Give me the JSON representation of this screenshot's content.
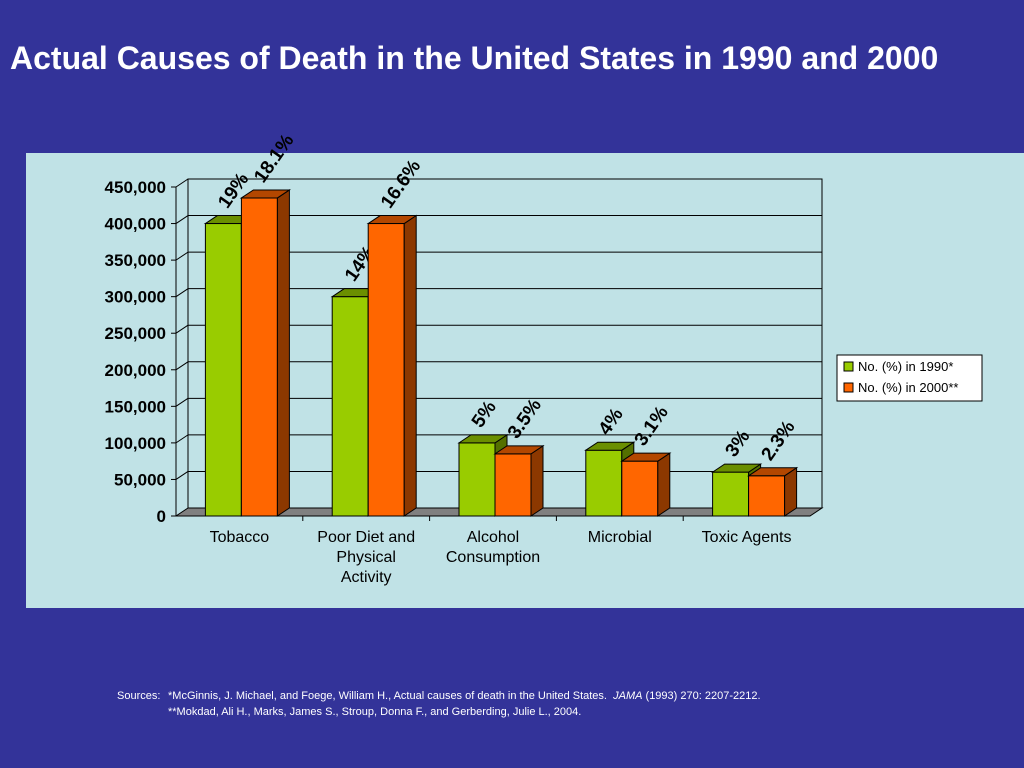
{
  "title": "Actual Causes of Death in the United States in 1990 and 2000",
  "chart_data": {
    "type": "bar",
    "categories": [
      "Tobacco",
      "Poor Diet and Physical Activity",
      "Alcohol Consumption",
      "Microbial",
      "Toxic Agents"
    ],
    "series": [
      {
        "name": "No. (%) in 1990*",
        "values": [
          400000,
          300000,
          100000,
          90000,
          60000
        ],
        "labels": [
          "19%",
          "14%",
          "5%",
          "4%",
          "3%"
        ],
        "color": "#99cc00"
      },
      {
        "name": "No. (%) in 2000**",
        "values": [
          435000,
          400000,
          85000,
          75000,
          55000
        ],
        "labels": [
          "18.1%",
          "16.6%",
          "3.5%",
          "3.1%",
          "2.3%"
        ],
        "color": "#ff6600"
      }
    ],
    "ylim": [
      0,
      450000
    ],
    "yticks": [
      "0",
      "50,000",
      "100,000",
      "150,000",
      "200,000",
      "250,000",
      "300,000",
      "350,000",
      "400,000",
      "450,000"
    ],
    "xlabel": "",
    "ylabel": "",
    "grid": true,
    "legend": "right",
    "style": "3d-clustered-column"
  },
  "sources": {
    "label": "Sources:",
    "line1_prefix": "*McGinnis, J. Michael, and Foege, William H., Actual causes of death in the United States.",
    "line1_journal": "JAMA",
    "line1_suffix": "(1993) 270:  2207-2212.",
    "line2": "**Mokdad, Ali H., Marks, James S., Stroup, Donna F., and Gerberding, Julie L., 2004."
  }
}
